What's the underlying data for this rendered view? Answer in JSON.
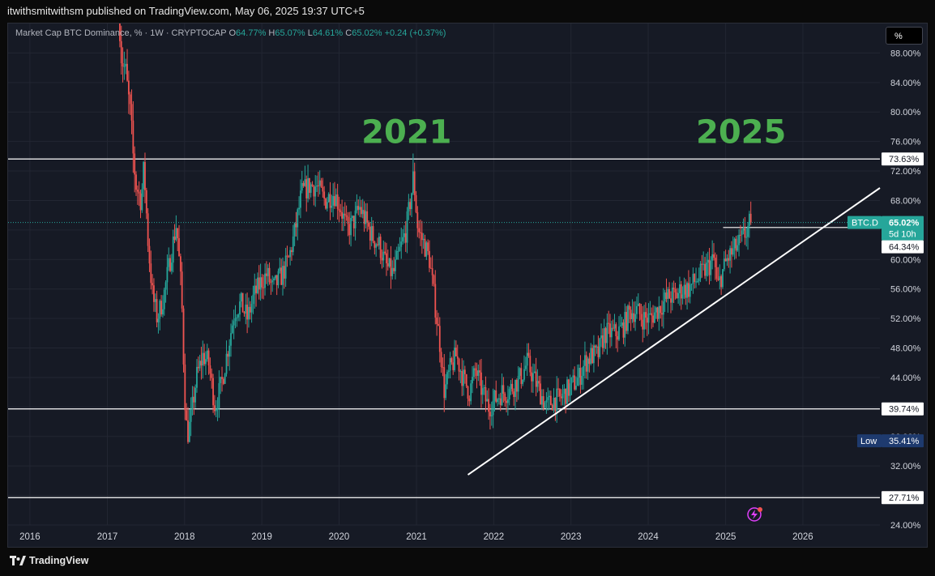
{
  "header": {
    "publisher": "itwithsmitwithsm published on TradingView.com, May 06, 2025 19:37 UTC+5"
  },
  "legend": {
    "symbol": "Market Cap BTC Dominance, % · 1W · CRYPTOCAP",
    "o_label": "O",
    "o_value": "64.77%",
    "h_label": "H",
    "h_value": "65.07%",
    "l_label": "L",
    "l_value": "64.61%",
    "c_label": "C",
    "c_value": "65.02%",
    "change": "+0.24 (+0.37%)"
  },
  "unit_button": "%",
  "footer": {
    "brand": "TradingView"
  },
  "colors": {
    "up": "#26a69a",
    "down": "#ef5350",
    "annotation": "#4caf50",
    "background": "#161a25"
  },
  "chart_data": {
    "type": "candlestick",
    "series_label": "BTC.D",
    "interval": "1W",
    "ylim": [
      24,
      92
    ],
    "xlim": [
      "2015-09-20",
      "2026-12-31"
    ],
    "y_ticks": [
      "88.00%",
      "84.00%",
      "80.00%",
      "76.00%",
      "72.00%",
      "68.00%",
      "64.00%",
      "60.00%",
      "56.00%",
      "52.00%",
      "48.00%",
      "44.00%",
      "40.00%",
      "36.00%",
      "32.00%",
      "28.00%",
      "24.00%"
    ],
    "x_ticks": [
      "2016",
      "2017",
      "2018",
      "2019",
      "2020",
      "2021",
      "2022",
      "2023",
      "2024",
      "2025",
      "2026"
    ],
    "price_path": [
      [
        "2017-03-01",
        96
      ],
      [
        "2017-03-15",
        88
      ],
      [
        "2017-04-05",
        85
      ],
      [
        "2017-04-25",
        80
      ],
      [
        "2017-05-10",
        74
      ],
      [
        "2017-05-25",
        70
      ],
      [
        "2017-06-15",
        68
      ],
      [
        "2017-07-01",
        72
      ],
      [
        "2017-07-20",
        62
      ],
      [
        "2017-08-10",
        55
      ],
      [
        "2017-09-01",
        52
      ],
      [
        "2017-10-01",
        55
      ],
      [
        "2017-11-01",
        60
      ],
      [
        "2017-12-01",
        65
      ],
      [
        "2017-12-25",
        55
      ],
      [
        "2018-01-08",
        42
      ],
      [
        "2018-01-20",
        36
      ],
      [
        "2018-02-05",
        38
      ],
      [
        "2018-03-05",
        44
      ],
      [
        "2018-04-05",
        47
      ],
      [
        "2018-05-01",
        46
      ],
      [
        "2018-06-01",
        40
      ],
      [
        "2018-07-01",
        43
      ],
      [
        "2018-08-01",
        48
      ],
      [
        "2018-09-01",
        53
      ],
      [
        "2018-10-01",
        54
      ],
      [
        "2018-11-01",
        52
      ],
      [
        "2018-12-01",
        55
      ],
      [
        "2019-01-05",
        57
      ],
      [
        "2019-02-01",
        58
      ],
      [
        "2019-03-01",
        56
      ],
      [
        "2019-04-15",
        58
      ],
      [
        "2019-05-15",
        60
      ],
      [
        "2019-06-15",
        64
      ],
      [
        "2019-07-15",
        69
      ],
      [
        "2019-08-20",
        70
      ],
      [
        "2019-09-25",
        70
      ],
      [
        "2019-11-01",
        68
      ],
      [
        "2019-12-15",
        69
      ],
      [
        "2020-01-15",
        67
      ],
      [
        "2020-02-15",
        64
      ],
      [
        "2020-03-15",
        65
      ],
      [
        "2020-04-15",
        67
      ],
      [
        "2020-05-15",
        65
      ],
      [
        "2020-06-15",
        63
      ],
      [
        "2020-07-15",
        62
      ],
      [
        "2020-08-20",
        59
      ],
      [
        "2020-09-20",
        58
      ],
      [
        "2020-10-20",
        61
      ],
      [
        "2020-11-20",
        64
      ],
      [
        "2020-12-25",
        71
      ],
      [
        "2021-01-15",
        64
      ],
      [
        "2021-02-15",
        62
      ],
      [
        "2021-03-10",
        60
      ],
      [
        "2021-04-01",
        55
      ],
      [
        "2021-05-01",
        48
      ],
      [
        "2021-05-20",
        42
      ],
      [
        "2021-06-15",
        45
      ],
      [
        "2021-07-15",
        47
      ],
      [
        "2021-08-15",
        44
      ],
      [
        "2021-09-15",
        42
      ],
      [
        "2021-10-15",
        45
      ],
      [
        "2021-11-15",
        42
      ],
      [
        "2021-12-15",
        40
      ],
      [
        "2022-01-15",
        41
      ],
      [
        "2022-02-15",
        42
      ],
      [
        "2022-03-15",
        42
      ],
      [
        "2022-04-15",
        43
      ],
      [
        "2022-05-15",
        44
      ],
      [
        "2022-06-15",
        46
      ],
      [
        "2022-07-15",
        44
      ],
      [
        "2022-08-15",
        42
      ],
      [
        "2022-09-15",
        40
      ],
      [
        "2022-10-15",
        41
      ],
      [
        "2022-11-15",
        41
      ],
      [
        "2022-12-15",
        42
      ],
      [
        "2023-01-15",
        43
      ],
      [
        "2023-02-15",
        44
      ],
      [
        "2023-03-15",
        46
      ],
      [
        "2023-04-15",
        47
      ],
      [
        "2023-05-15",
        47
      ],
      [
        "2023-06-15",
        50
      ],
      [
        "2023-07-15",
        50
      ],
      [
        "2023-08-15",
        50
      ],
      [
        "2023-09-15",
        51
      ],
      [
        "2023-10-15",
        53
      ],
      [
        "2023-11-15",
        53
      ],
      [
        "2023-12-15",
        52
      ],
      [
        "2024-01-15",
        52
      ],
      [
        "2024-02-15",
        53
      ],
      [
        "2024-03-15",
        54
      ],
      [
        "2024-04-15",
        55
      ],
      [
        "2024-05-15",
        55
      ],
      [
        "2024-06-15",
        56
      ],
      [
        "2024-07-15",
        56
      ],
      [
        "2024-08-15",
        57
      ],
      [
        "2024-09-15",
        58
      ],
      [
        "2024-10-15",
        59
      ],
      [
        "2024-11-15",
        60
      ],
      [
        "2024-11-30",
        56
      ],
      [
        "2024-12-20",
        58
      ],
      [
        "2025-01-15",
        60
      ],
      [
        "2025-02-10",
        61
      ],
      [
        "2025-03-10",
        62
      ],
      [
        "2025-04-01",
        63
      ],
      [
        "2025-04-20",
        64
      ],
      [
        "2025-05-04",
        65.02
      ]
    ],
    "horizontal_levels": [
      {
        "value": 73.63,
        "label": "73.63%"
      },
      {
        "value": 39.74,
        "label": "39.74%"
      },
      {
        "value": 27.71,
        "label": "27.71%"
      }
    ],
    "level_segments": [
      {
        "x0": "2024-12-20",
        "x1": "2026-12-31",
        "value": 64.34,
        "label": "64.34%"
      }
    ],
    "trendline": {
      "from": [
        "2021-09-01",
        30.8
      ],
      "to": [
        "2026-12-31",
        69.7
      ]
    },
    "last_price": {
      "value": 65.02,
      "label": "65.02%",
      "countdown": "5d 10h",
      "symbol": "BTC.D"
    },
    "low_marker": {
      "text": "Low",
      "label": "35.41%",
      "value": 35.41
    },
    "annotations": [
      {
        "text": "2021",
        "x": "2020-11-15",
        "y": 75.8
      },
      {
        "text": "2025",
        "x": "2025-03-15",
        "y": 75.8
      }
    ]
  }
}
